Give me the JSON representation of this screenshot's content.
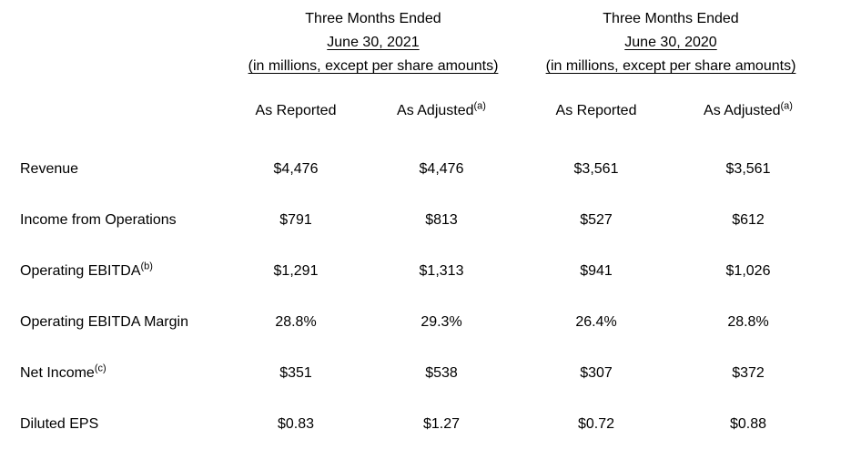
{
  "table": {
    "period_headers": [
      {
        "line1": "Three Months Ended",
        "line2": "June 30, 2021",
        "line3": "(in millions, except per share amounts)"
      },
      {
        "line1": "Three Months Ended",
        "line2": "June 30, 2020",
        "line3": "(in millions, except per share amounts)"
      }
    ],
    "column_headers": [
      {
        "label": "As Reported",
        "sup": ""
      },
      {
        "label": "As Adjusted",
        "sup": "(a)"
      },
      {
        "label": "As Reported",
        "sup": ""
      },
      {
        "label": "As Adjusted",
        "sup": "(a)"
      }
    ],
    "rows": [
      {
        "label": "Revenue",
        "sup": "",
        "values": [
          "$4,476",
          "$4,476",
          "$3,561",
          "$3,561"
        ]
      },
      {
        "label": "Income from Operations",
        "sup": "",
        "values": [
          "$791",
          "$813",
          "$527",
          "$612"
        ]
      },
      {
        "label": "Operating EBITDA",
        "sup": "(b)",
        "values": [
          "$1,291",
          "$1,313",
          "$941",
          "$1,026"
        ]
      },
      {
        "label": "Operating EBITDA Margin",
        "sup": "",
        "values": [
          "28.8%",
          "29.3%",
          "26.4%",
          "28.8%"
        ]
      },
      {
        "label": "Net Income",
        "sup": "(c)",
        "values": [
          "$351",
          "$538",
          "$307",
          "$372"
        ]
      },
      {
        "label": "Diluted EPS",
        "sup": "",
        "values": [
          "$0.83",
          "$1.27",
          "$0.72",
          "$0.88"
        ]
      }
    ]
  }
}
